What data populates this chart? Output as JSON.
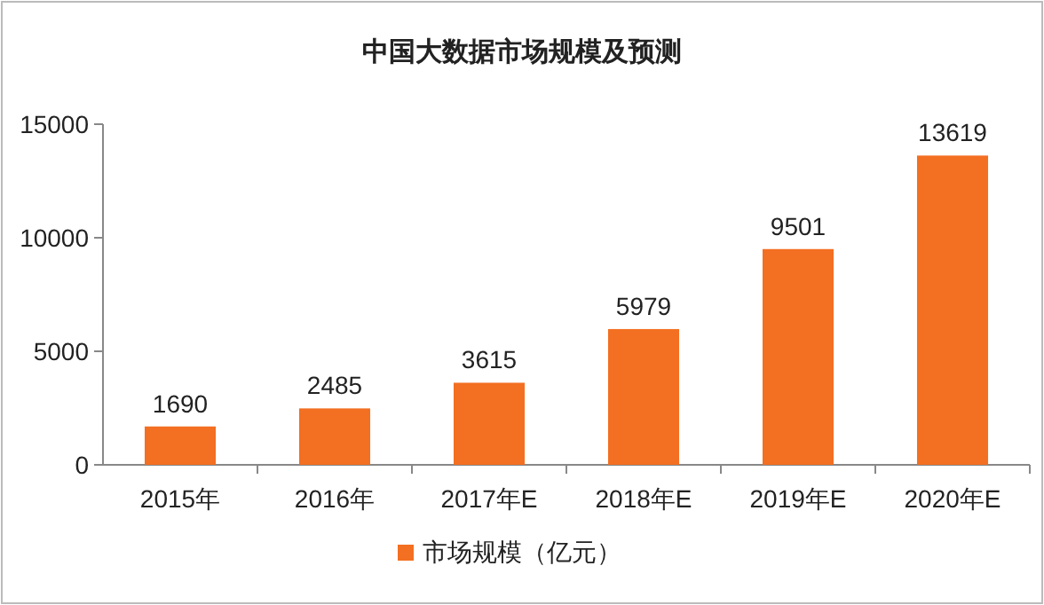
{
  "chart_data": {
    "type": "bar",
    "title": "中国大数据市场规模及预测",
    "categories": [
      "2015年",
      "2016年",
      "2017年E",
      "2018年E",
      "2019年E",
      "2020年E"
    ],
    "series": [
      {
        "name": "市场规模（亿元）",
        "color": "#f36f21",
        "values": [
          1690,
          2485,
          3615,
          5979,
          9501,
          13619
        ]
      }
    ],
    "ylim": [
      0,
      15000
    ],
    "yticks": [
      0,
      5000,
      10000,
      15000
    ],
    "data_labels": true,
    "legend": "bottom",
    "grid": false
  }
}
